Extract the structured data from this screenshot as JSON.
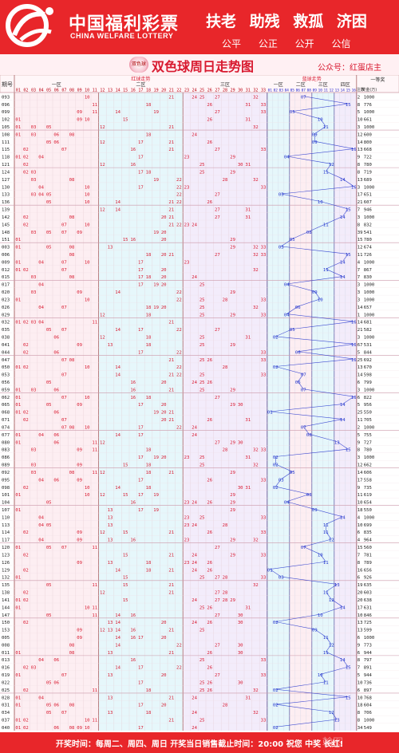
{
  "header": {
    "brand_cn": "中国福利彩票",
    "brand_en": "CHINA WELFARE LOTTERY",
    "slogan": "扶老 助残 救孤 济困",
    "values": "公平 公正 公开 公信"
  },
  "titlebar": {
    "badge": "双色球",
    "title": "双色球周日走势图",
    "account": "公众号：红蛋店主"
  },
  "footer": {
    "text": "开奖时间：每周二、周四、周日  开奖当日销售截止时间：20:00  祝您 中奖 长红!"
  },
  "watermark": "翰图",
  "colors": {
    "red": "#e8262a",
    "ball_red": "#d8192f",
    "ball_blue": "#2233cc",
    "zone1": "#fdeef2",
    "zone2": "#e6f7fb",
    "zone3": "#f3ecfb"
  },
  "table": {
    "col_issue": "期号",
    "red_group": "红球走势",
    "blue_group": "蓝球走势",
    "zones_red": [
      "一区",
      "二区",
      "三区"
    ],
    "zones_blue": [
      "一区",
      "二区",
      "三区",
      "四区"
    ],
    "prize_col": "一等奖",
    "prize_sub": [
      "注数",
      "奖金(万)"
    ],
    "rows": [
      {
        "issue": "093",
        "r": [
          10,
          21,
          24,
          25,
          27,
          32
        ],
        "b": 7,
        "pc": "2",
        "pm": "1000"
      },
      {
        "issue": "096",
        "r": [
          11,
          18,
          26,
          31,
          33
        ],
        "b": 15,
        "pc": "8",
        "pm": "776"
      },
      {
        "issue": "099",
        "r": [
          9,
          11,
          14,
          19,
          27,
          33
        ],
        "b": 5,
        "pc": "5",
        "pm": "1000"
      },
      {
        "issue": "102",
        "r": [
          1,
          9,
          10,
          15,
          26,
          31
        ],
        "b": 10,
        "pc": "10",
        "pm": "661"
      },
      {
        "issue": "105",
        "r": [
          1,
          3,
          5,
          12,
          21,
          32
        ],
        "b": 11,
        "pc": "3",
        "pm": "1000"
      },
      {
        "issue": "108",
        "r": [
          1,
          3,
          6,
          8,
          18,
          24
        ],
        "b": 9,
        "pc": "12",
        "pm": "600"
      },
      {
        "issue": "111",
        "r": [
          5,
          6,
          12,
          17,
          21,
          26
        ],
        "b": 9,
        "pc": "14",
        "pm": "800"
      },
      {
        "issue": "115",
        "r": [
          2,
          7,
          16,
          21,
          27,
          33
        ],
        "b": 16,
        "pc": "13",
        "pm": "668"
      },
      {
        "issue": "118",
        "r": [
          1,
          2,
          4,
          17,
          23,
          29
        ],
        "b": 4,
        "pc": "9",
        "pm": "722"
      },
      {
        "issue": "121",
        "r": [
          2,
          12,
          16,
          25,
          30,
          31
        ],
        "b": 12,
        "pc": "8",
        "pm": "780"
      },
      {
        "issue": "124",
        "r": [
          2,
          3,
          17,
          18,
          25,
          29
        ],
        "b": 11,
        "pc": "8",
        "pm": "719"
      },
      {
        "issue": "127",
        "r": [
          3,
          8,
          19,
          22,
          28,
          32
        ],
        "b": 14,
        "pc": "13",
        "pm": "689"
      },
      {
        "issue": "130",
        "r": [
          4,
          10,
          17,
          22,
          23,
          33
        ],
        "b": 16,
        "pc": "3",
        "pm": "1000"
      },
      {
        "issue": "133",
        "r": [
          3,
          4,
          5,
          10,
          22,
          27
        ],
        "b": 3,
        "pc": "17",
        "pm": "651"
      },
      {
        "issue": "136",
        "r": [
          5,
          10,
          14,
          21,
          22,
          26
        ],
        "b": 10,
        "pc": "21",
        "pm": "607"
      },
      {
        "issue": "139",
        "r": [
          12,
          14,
          21,
          27,
          31
        ],
        "b": 15,
        "pc": "7",
        "pm": "946"
      },
      {
        "issue": "142",
        "r": [
          2,
          8,
          20,
          21,
          27,
          31
        ],
        "b": 14,
        "pc": "3",
        "pm": "1000"
      },
      {
        "issue": "145",
        "r": [
          2,
          7,
          10,
          21,
          22,
          23,
          24
        ],
        "b": 11,
        "pc": "8",
        "pm": "832"
      },
      {
        "issue": "148",
        "r": [
          3,
          5,
          7,
          9,
          19,
          20
        ],
        "b": 8,
        "pc": "39",
        "pm": "541"
      },
      {
        "issue": "151",
        "r": [
          1,
          15,
          16,
          20,
          29
        ],
        "b": 5,
        "pc": "15",
        "pm": "780"
      },
      {
        "issue": "003",
        "r": [
          1,
          5,
          8,
          13,
          29,
          32,
          33
        ],
        "b": 3,
        "pc": "12",
        "pm": "674"
      },
      {
        "issue": "006",
        "r": [
          8,
          18,
          20,
          21,
          27,
          32,
          33
        ],
        "b": 15,
        "pc": "11",
        "pm": "726"
      },
      {
        "issue": "009",
        "r": [
          1,
          4,
          7,
          10,
          17,
          23
        ],
        "b": 14,
        "pc": "4",
        "pm": "1000"
      },
      {
        "issue": "012",
        "r": [
          1,
          2,
          7,
          17,
          20,
          32
        ],
        "b": 11,
        "pc": "7",
        "pm": "867"
      },
      {
        "issue": "015",
        "r": [
          3,
          8,
          17,
          18,
          20,
          24
        ],
        "b": 14,
        "pc": "7",
        "pm": "830"
      },
      {
        "issue": "017",
        "r": [
          4,
          17,
          19,
          20,
          25
        ],
        "b": 4,
        "pc": "3",
        "pm": "1000"
      },
      {
        "issue": "020",
        "r": [
          3,
          9,
          14,
          22,
          29
        ],
        "b": 9,
        "pc": "3",
        "pm": "1000"
      },
      {
        "issue": "023",
        "r": [
          1,
          10,
          22,
          25,
          28,
          33
        ],
        "b": 10,
        "pc": "3",
        "pm": "1000"
      },
      {
        "issue": "026",
        "r": [
          4,
          7,
          18,
          19,
          20,
          25,
          32
        ],
        "b": 6,
        "pc": "14",
        "pm": "657"
      },
      {
        "issue": "029",
        "r": [
          12,
          18,
          25,
          29,
          33
        ],
        "b": 4,
        "pc": "1",
        "pm": "1000"
      },
      {
        "issue": "032",
        "r": [
          1,
          2,
          3,
          4,
          11,
          21
        ],
        "b": 16,
        "pc": "14",
        "pm": "681"
      },
      {
        "issue": "035",
        "r": [
          5,
          7,
          14,
          17,
          22,
          27
        ],
        "b": 5,
        "pc": "21",
        "pm": "582"
      },
      {
        "issue": "038",
        "r": [
          6,
          12,
          18,
          25,
          31
        ],
        "b": 2,
        "pc": "3",
        "pm": "1000"
      },
      {
        "issue": "041",
        "r": [
          2,
          9,
          13,
          18,
          25,
          29
        ],
        "b": 16,
        "pc": "67",
        "pm": "531"
      },
      {
        "issue": "044",
        "r": [
          2,
          6,
          17,
          22,
          33
        ],
        "b": 6,
        "pc": "5",
        "pm": "844"
      },
      {
        "issue": "047",
        "r": [
          7,
          8,
          21,
          25,
          26,
          33
        ],
        "b": 16,
        "pc": "25",
        "pm": "692"
      },
      {
        "issue": "050",
        "r": [
          1,
          2,
          10,
          14,
          22,
          28
        ],
        "b": 2,
        "pc": "13",
        "pm": "670"
      },
      {
        "issue": "053",
        "r": [
          7,
          14,
          21,
          22,
          25,
          33
        ],
        "b": 7,
        "pc": "14",
        "pm": "598"
      },
      {
        "issue": "056",
        "r": [
          5,
          16,
          20,
          24,
          25,
          26
        ],
        "b": 6,
        "pc": "6",
        "pm": "799"
      },
      {
        "issue": "059",
        "r": [
          1,
          3,
          6,
          16,
          21,
          25,
          29
        ],
        "b": 7,
        "pc": "3",
        "pm": "1000"
      },
      {
        "issue": "062",
        "r": [
          1,
          7,
          10,
          16,
          18,
          27
        ],
        "b": 16,
        "pc": "6",
        "pm": "822"
      },
      {
        "issue": "065",
        "r": [
          1,
          5,
          9,
          17,
          20,
          29,
          30
        ],
        "b": 14,
        "pc": "5",
        "pm": "956"
      },
      {
        "issue": "068",
        "r": [
          1,
          2,
          6,
          19,
          20,
          21
        ],
        "b": 1,
        "pc": "25",
        "pm": "550"
      },
      {
        "issue": "071",
        "r": [
          2,
          7,
          20,
          21,
          26,
          31
        ],
        "b": 14,
        "pc": "11",
        "pm": "705"
      },
      {
        "issue": "074",
        "r": [
          7,
          8,
          10,
          17,
          22,
          24
        ],
        "b": 7,
        "pc": "2",
        "pm": "1000"
      },
      {
        "issue": "077",
        "r": [
          1,
          4,
          6,
          14,
          17,
          24
        ],
        "b": 8,
        "pc": "5",
        "pm": "755"
      },
      {
        "issue": "080",
        "r": [
          1,
          6,
          11,
          12,
          27,
          29,
          30
        ],
        "b": 13,
        "pc": "9",
        "pm": "727"
      },
      {
        "issue": "083",
        "r": [
          3,
          9,
          11,
          18,
          28,
          32,
          33
        ],
        "b": 15,
        "pc": "8",
        "pm": "780"
      },
      {
        "issue": "086",
        "r": [
          17,
          19,
          20,
          23,
          25,
          31
        ],
        "b": 2,
        "pc": "3",
        "pm": "1000"
      },
      {
        "issue": "089",
        "r": [
          3,
          9,
          15,
          18,
          25,
          32
        ],
        "b": 2,
        "pc": "12",
        "pm": "662"
      },
      {
        "issue": "092",
        "r": [
          3,
          8,
          11,
          12,
          18,
          21,
          29
        ],
        "b": 5,
        "pc": "14",
        "pm": "606"
      },
      {
        "issue": "095",
        "r": [
          4,
          6,
          9,
          17,
          26,
          33
        ],
        "b": 3,
        "pc": "17",
        "pm": "558"
      },
      {
        "issue": "098",
        "r": [
          2,
          10,
          14,
          18,
          30,
          31
        ],
        "b": 2,
        "pc": "9",
        "pm": "735"
      },
      {
        "issue": "101",
        "r": [
          1,
          10,
          12,
          15,
          17,
          19,
          29
        ],
        "b": 8,
        "pc": "11",
        "pm": "619"
      },
      {
        "issue": "104",
        "r": [
          5,
          16,
          23,
          24,
          26,
          29
        ],
        "b": 4,
        "pc": "10",
        "pm": "654"
      },
      {
        "issue": "107",
        "r": [
          1,
          13,
          17,
          19,
          29
        ],
        "b": 9,
        "pc": "18",
        "pm": "550"
      },
      {
        "issue": "110",
        "r": [
          4,
          13,
          23,
          25,
          33
        ],
        "b": 14,
        "pc": "4",
        "pm": "1000"
      },
      {
        "issue": "113",
        "r": [
          4,
          5,
          13,
          23,
          24,
          28
        ],
        "b": 11,
        "pc": "10",
        "pm": "699"
      },
      {
        "issue": "114",
        "r": [
          2,
          9,
          12,
          15,
          21,
          26,
          33
        ],
        "b": 11,
        "pc": "6",
        "pm": "835"
      },
      {
        "issue": "117",
        "r": [
          4,
          9,
          13,
          16,
          23,
          29,
          32
        ],
        "b": 12,
        "pc": "4",
        "pm": "964"
      },
      {
        "issue": "120",
        "r": [
          1,
          5,
          7,
          11,
          27
        ],
        "b": 7,
        "pc": "15",
        "pm": "560"
      },
      {
        "issue": "123",
        "r": [
          2,
          15,
          21,
          24,
          29,
          33
        ],
        "b": 10,
        "pc": "7",
        "pm": "781"
      },
      {
        "issue": "126",
        "r": [
          9,
          13,
          18,
          23,
          24,
          26
        ],
        "b": 11,
        "pc": "8",
        "pm": "789"
      },
      {
        "issue": "129",
        "r": [
          2,
          14,
          18,
          21,
          24,
          26
        ],
        "b": 1,
        "pc": "16",
        "pm": "656"
      },
      {
        "issue": "132",
        "r": [
          1,
          15,
          25,
          27,
          28,
          33
        ],
        "b": 3,
        "pc": "6",
        "pm": "926"
      },
      {
        "issue": "135",
        "r": [
          5,
          11,
          15,
          21,
          32
        ],
        "b": 13,
        "pc": "19",
        "pm": "635"
      },
      {
        "issue": "138",
        "r": [
          2,
          12,
          21,
          27,
          28
        ],
        "b": 11,
        "pc": "20",
        "pm": "603"
      },
      {
        "issue": "141",
        "r": [
          1,
          2,
          15,
          24,
          27,
          28,
          29
        ],
        "b": 12,
        "pc": "20",
        "pm": "638"
      },
      {
        "issue": "144",
        "r": [
          1,
          10,
          11,
          25,
          26,
          31
        ],
        "b": 14,
        "pc": "17",
        "pm": "631"
      },
      {
        "issue": "147",
        "r": [
          5,
          11,
          14,
          16,
          27,
          30
        ],
        "b": 10,
        "pc": "10",
        "pm": "846"
      },
      {
        "issue": "150",
        "r": [
          2,
          13,
          14,
          20,
          24,
          26,
          30
        ],
        "b": 2,
        "pc": "13",
        "pm": "725"
      },
      {
        "issue": "153",
        "r": [
          9,
          12,
          13,
          14,
          16,
          21,
          25
        ],
        "b": 9,
        "pc": "13",
        "pm": "599"
      },
      {
        "issue": "005",
        "r": [
          9,
          14,
          16,
          17,
          20
        ],
        "b": 11,
        "pc": "6",
        "pm": "1000"
      },
      {
        "issue": "008",
        "r": [
          8,
          14,
          22,
          27,
          30
        ],
        "b": 12,
        "pc": "9",
        "pm": "773"
      },
      {
        "issue": "011",
        "r": [
          1,
          8,
          13,
          21,
          26,
          30
        ],
        "b": 11,
        "pc": "6",
        "pm": "944"
      },
      {
        "issue": "013",
        "r": [
          4,
          6,
          16,
          25,
          33
        ],
        "b": 14,
        "pc": "8",
        "pm": "797"
      },
      {
        "issue": "016",
        "r": [
          2,
          3,
          14,
          17,
          22,
          26
        ],
        "b": 15,
        "pc": "7",
        "pm": "891"
      },
      {
        "issue": "019",
        "r": [
          1,
          7,
          13,
          20,
          27,
          33
        ],
        "b": 10,
        "pc": "5",
        "pm": "944"
      },
      {
        "issue": "022",
        "r": [
          5,
          6,
          17,
          25,
          26,
          30
        ],
        "b": 11,
        "pc": "10",
        "pm": "736"
      },
      {
        "issue": "025",
        "r": [
          2,
          11,
          18,
          25,
          26,
          32
        ],
        "b": 2,
        "pc": "6",
        "pm": "897"
      },
      {
        "issue": "028",
        "r": [
          1,
          4,
          13,
          21,
          24,
          31
        ],
        "b": 15,
        "pc": "10",
        "pm": "768"
      },
      {
        "issue": "031",
        "r": [
          1,
          5,
          6,
          8,
          17,
          20,
          28
        ],
        "b": 2,
        "pc": "18",
        "pm": "604"
      },
      {
        "issue": "034",
        "r": [
          5,
          7,
          13,
          18,
          24,
          32
        ],
        "b": 12,
        "pc": "8",
        "pm": "706"
      },
      {
        "issue": "037",
        "r": [
          1,
          2,
          10,
          11,
          21,
          25,
          33
        ],
        "b": 13,
        "pc": "8",
        "pm": "1000"
      },
      {
        "issue": "040",
        "r": [
          1,
          2,
          6,
          8,
          9,
          10,
          17,
          24
        ],
        "b": 2,
        "pc": "34",
        "pm": "549"
      }
    ]
  }
}
